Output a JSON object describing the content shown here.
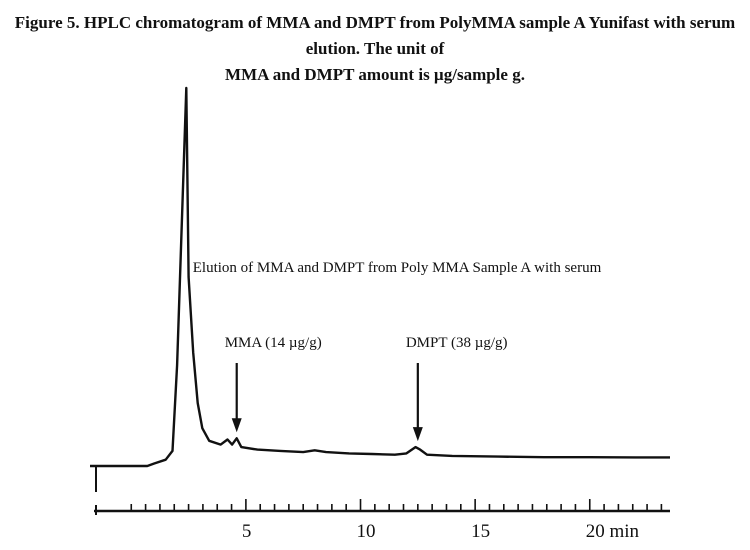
{
  "caption": {
    "line1": "Figure 5. HPLC chromatogram of MMA and DMPT from PolyMMA sample A  Yunifast with serum elution. The unit of",
    "line2": "MMA and DMPT amount is µg/sample g."
  },
  "chart_data": {
    "type": "line",
    "title": "Elution of MMA  and DMPT from  Poly MMA  Sample A with serum",
    "x_unit": "min",
    "xlim": [
      -1.8,
      23.5
    ],
    "x_tick_labels": [
      {
        "x": 5,
        "label": "5"
      },
      {
        "x": 10,
        "label": "10"
      },
      {
        "x": 15,
        "label": "15"
      },
      {
        "x": 20,
        "label": "20  min"
      }
    ],
    "minor_tick_step": 0.625,
    "series": [
      {
        "points": [
          [
            -1.8,
            0.0
          ],
          [
            0.0,
            0.0
          ],
          [
            0.7,
            0.0
          ],
          [
            1.0,
            0.02
          ],
          [
            1.5,
            0.05
          ],
          [
            1.8,
            0.12
          ],
          [
            2.0,
            0.8
          ],
          [
            2.4,
            3.0
          ],
          [
            2.5,
            1.5
          ],
          [
            2.7,
            0.9
          ],
          [
            2.9,
            0.5
          ],
          [
            3.1,
            0.3
          ],
          [
            3.4,
            0.2
          ],
          [
            3.9,
            0.17
          ],
          [
            4.2,
            0.21
          ],
          [
            4.4,
            0.17
          ],
          [
            4.6,
            0.22
          ],
          [
            4.8,
            0.15
          ],
          [
            5.5,
            0.13
          ],
          [
            6.5,
            0.12
          ],
          [
            7.5,
            0.11
          ],
          [
            8.0,
            0.125
          ],
          [
            8.5,
            0.11
          ],
          [
            9.5,
            0.1
          ],
          [
            10.5,
            0.095
          ],
          [
            11.5,
            0.09
          ],
          [
            12.0,
            0.1
          ],
          [
            12.4,
            0.15
          ],
          [
            12.6,
            0.13
          ],
          [
            12.9,
            0.09
          ],
          [
            14.0,
            0.08
          ],
          [
            16.0,
            0.075
          ],
          [
            18.0,
            0.07
          ],
          [
            20.0,
            0.07
          ],
          [
            22.0,
            0.068
          ],
          [
            23.5,
            0.068
          ]
        ]
      }
    ],
    "annotations": [
      {
        "label": "MMA (14 µg/g)",
        "x": 4.6
      },
      {
        "label": "DMPT (38 µg/g)",
        "x": 12.5
      }
    ],
    "grid": false,
    "legend": "none"
  }
}
